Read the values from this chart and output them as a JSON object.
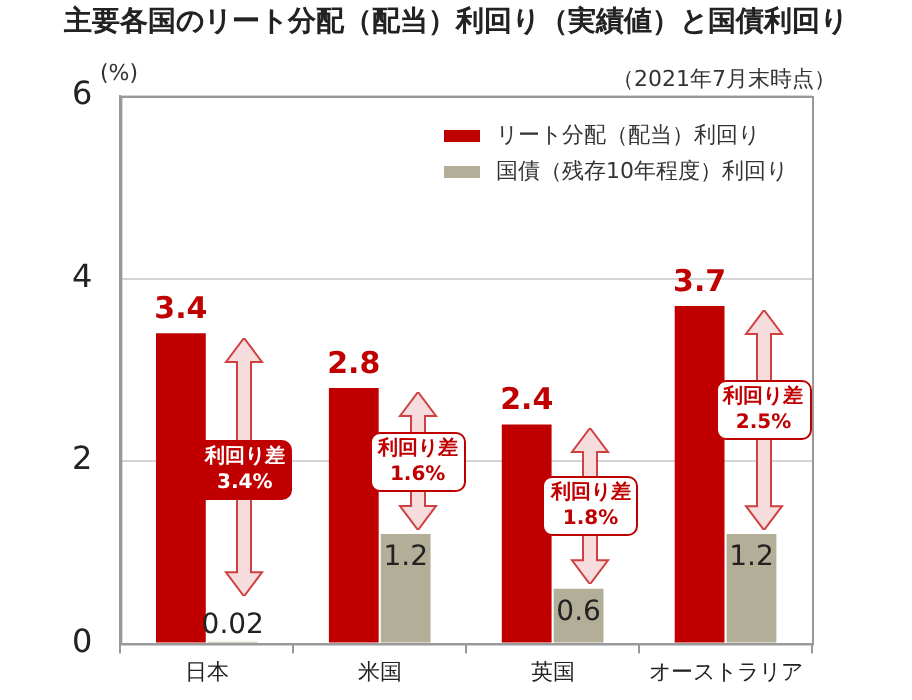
{
  "chart_data": {
    "type": "bar",
    "title": "主要各国のリート分配（配当）利回り（実績値）と国債利回り",
    "subtitle": "（2021年7月末時点）",
    "ylabel": "(%)",
    "categories": [
      "日本",
      "米国",
      "英国",
      "オーストラリア"
    ],
    "series": [
      {
        "name": "リート分配（配当）利回り",
        "color": "#c00000",
        "values": [
          3.4,
          2.8,
          2.4,
          3.7
        ]
      },
      {
        "name": "国債（残存10年程度）利回り",
        "color": "#b3ae98",
        "values": [
          0.02,
          1.2,
          0.6,
          1.2
        ]
      }
    ],
    "ylim": [
      0,
      6
    ],
    "yticks": [
      0,
      2,
      4,
      6
    ],
    "grid": "y",
    "legend": "top right",
    "data_labels": true,
    "annotations": [
      {
        "text": "利回り差\n3.4%",
        "x": "日本",
        "y": 1.9
      },
      {
        "text": "利回り差\n1.6%",
        "x": "米国",
        "y": 2.0
      },
      {
        "text": "利回り差\n1.8%",
        "x": "英国",
        "y": 1.5
      },
      {
        "text": "利回り差\n2.5%",
        "x": "オーストラリア",
        "y": 2.55
      }
    ]
  }
}
